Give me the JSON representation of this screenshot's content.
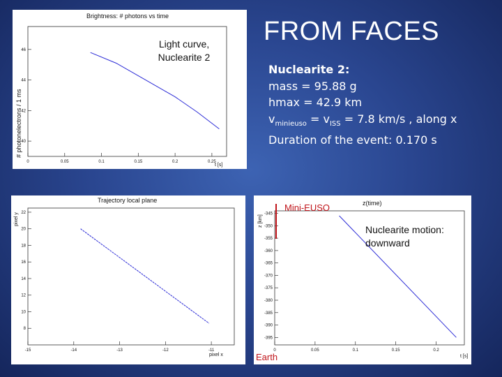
{
  "main_title": "FROM FACES",
  "info": {
    "header": "Nuclearite 2:",
    "mass": "mass = 95.88 g",
    "hmax": "hmax = 42.9 km",
    "v_prefix": "v",
    "v_sub1": "minieuso",
    "v_mid": " = v",
    "v_sub2": "ISS",
    "v_suffix": " = 7.8 km/s , along x",
    "duration": "Duration of the event: 0.170 s"
  },
  "light_curve": {
    "vertical_label": "# photonelectrons / 1 ms",
    "annotation_line1": "Light curve,",
    "annotation_line2": "Nuclearite 2",
    "chart_data": {
      "type": "line",
      "title": "Brightness: # photons vs time",
      "xlabel": "t [s]",
      "xlim": [
        0,
        0.27
      ],
      "ylim": [
        39,
        47.5
      ],
      "xticks": [
        "0",
        "0.05",
        "0.1",
        "0.15",
        "0.2",
        "0.25"
      ],
      "yticks": [
        "40",
        "42",
        "44",
        "46"
      ],
      "x": [
        0.085,
        0.12,
        0.16,
        0.2,
        0.23,
        0.26
      ],
      "y": [
        45.8,
        45.1,
        44.0,
        42.9,
        41.9,
        40.8
      ]
    }
  },
  "trajectory": {
    "chart_data": {
      "type": "line",
      "title": "Trajectory local plane",
      "xlabel": "pixel x",
      "ylabel": "pixel y",
      "xlim": [
        -15,
        -10.5
      ],
      "ylim": [
        6,
        22.5
      ],
      "xticks": [
        "-15",
        "-14",
        "-13",
        "-12",
        "-11"
      ],
      "yticks": [
        "8",
        "10",
        "12",
        "14",
        "16",
        "18",
        "20",
        "22"
      ],
      "x": [
        -13.85,
        -11.05
      ],
      "y": [
        20.0,
        8.6
      ]
    }
  },
  "motion": {
    "mini_euso_label": "Mini-EUSO",
    "earth_label": "Earth",
    "annotation_line1": "Nuclearite motion:",
    "annotation_line2": "downward",
    "chart_data": {
      "type": "line",
      "title": "z(time)",
      "xlabel": "t [s]",
      "ylabel": "z [km]",
      "xlim": [
        0,
        0.235
      ],
      "ylim": [
        -398,
        -344
      ],
      "xticks": [
        "0",
        "0.05",
        "0.1",
        "0.15",
        "0.2"
      ],
      "yticks": [
        "-345",
        "-350",
        "-355",
        "-360",
        "-365",
        "-370",
        "-375",
        "-380",
        "-385",
        "-390",
        "-395"
      ],
      "x": [
        0.08,
        0.225
      ],
      "y": [
        -346,
        -395
      ]
    }
  },
  "colors": {
    "line": "#2b2bd6",
    "accent_red": "#c0141a"
  }
}
